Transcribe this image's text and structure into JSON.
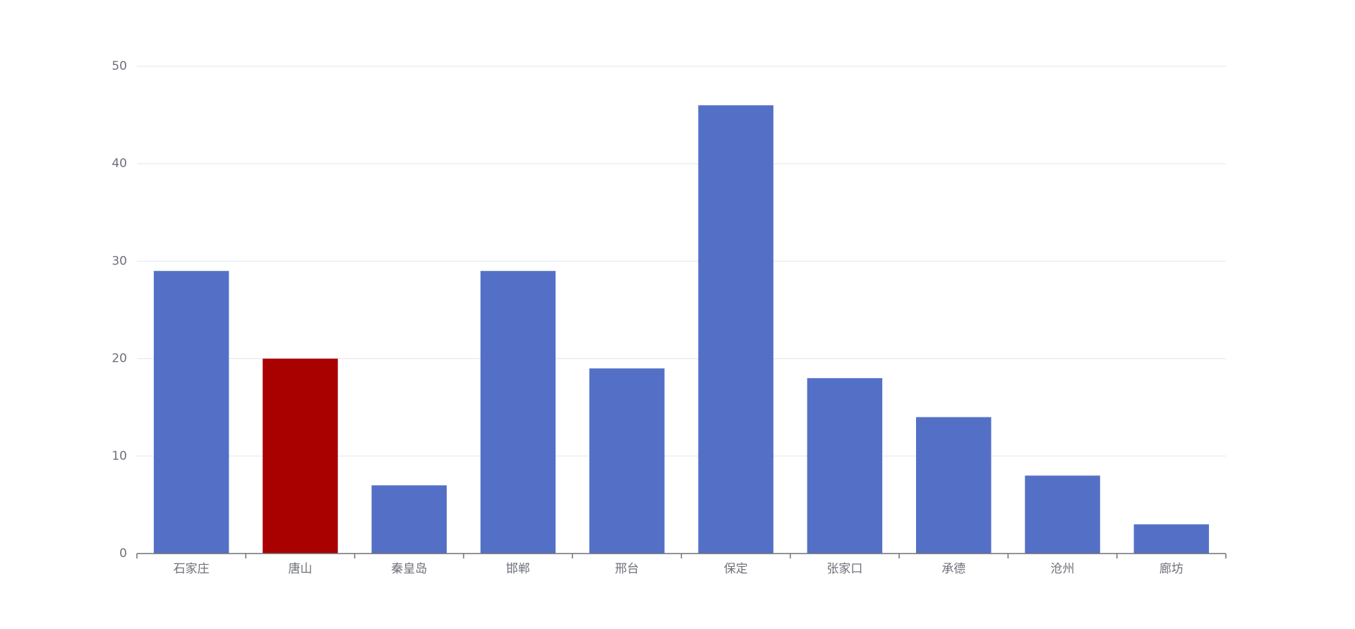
{
  "chart_data": {
    "type": "bar",
    "categories": [
      "石家庄",
      "唐山",
      "秦皇岛",
      "邯郸",
      "邢台",
      "保定",
      "张家口",
      "承德",
      "沧州",
      "廊坊"
    ],
    "values": [
      29,
      20,
      7,
      29,
      19,
      46,
      18,
      14,
      8,
      3
    ],
    "colors": [
      "#5470c6",
      "#a90000",
      "#5470c6",
      "#5470c6",
      "#5470c6",
      "#5470c6",
      "#5470c6",
      "#5470c6",
      "#5470c6",
      "#5470c6"
    ],
    "ylim": [
      0,
      50
    ],
    "yticks": [
      0,
      10,
      20,
      30,
      40,
      50
    ],
    "grid": true
  }
}
